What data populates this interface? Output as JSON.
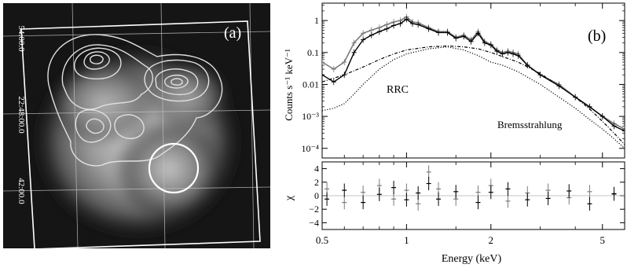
{
  "panel_a": {
    "label": "(a)",
    "dec_ticks": [
      "54:00.0",
      "22:48:00.0",
      "42:00.0"
    ],
    "ra_ticks": [
      "36.0",
      "6:17:04.0",
      "16:32.0"
    ]
  },
  "panel_b": {
    "label": "(b)",
    "annotations": {
      "rrc": "RRC",
      "brems": "Bremsstrahlung"
    }
  },
  "chart_data": [
    {
      "type": "line",
      "panel": "b-upper",
      "title": "",
      "xlabel": "Energy (keV)",
      "ylabel": "Counts s⁻¹ keV⁻¹",
      "xscale": "log",
      "yscale": "log",
      "xlim": [
        0.5,
        6.0
      ],
      "ylim": [
        5e-05,
        3.5
      ],
      "x_ticks": [
        "0.5",
        "1",
        "2",
        "5"
      ],
      "y_ticks": [
        "1",
        "0.1",
        "0.01",
        "10⁻³",
        "10⁻⁴"
      ],
      "series": [
        {
          "style": "data-grey",
          "x": [
            0.5,
            0.55,
            0.6,
            0.65,
            0.7,
            0.75,
            0.8,
            0.85,
            0.9,
            0.95,
            1.0,
            1.05,
            1.1,
            1.2,
            1.3,
            1.4,
            1.5,
            1.6,
            1.7,
            1.8,
            1.9,
            2.0,
            2.1,
            2.2,
            2.3,
            2.4,
            2.5,
            2.7,
            3.0,
            3.5,
            4.0,
            4.5,
            5.0,
            5.5,
            6.0
          ],
          "y": [
            0.05,
            0.03,
            0.05,
            0.2,
            0.4,
            0.5,
            0.6,
            0.75,
            0.9,
            1.0,
            1.3,
            0.9,
            0.85,
            0.6,
            0.45,
            0.45,
            0.3,
            0.35,
            0.25,
            0.45,
            0.22,
            0.18,
            0.12,
            0.1,
            0.11,
            0.1,
            0.09,
            0.04,
            0.02,
            0.01,
            0.004,
            0.002,
            0.001,
            0.0006,
            0.0004
          ]
        },
        {
          "style": "data-black",
          "x": [
            0.5,
            0.55,
            0.6,
            0.65,
            0.7,
            0.75,
            0.8,
            0.85,
            0.9,
            0.95,
            1.0,
            1.05,
            1.1,
            1.2,
            1.3,
            1.4,
            1.5,
            1.6,
            1.7,
            1.8,
            1.9,
            2.0,
            2.1,
            2.2,
            2.3,
            2.4,
            2.5,
            2.7,
            3.0,
            3.5,
            4.0,
            4.5,
            5.0,
            5.5,
            6.0
          ],
          "y": [
            0.02,
            0.012,
            0.02,
            0.1,
            0.25,
            0.35,
            0.45,
            0.55,
            0.7,
            0.8,
            1.1,
            0.8,
            0.75,
            0.55,
            0.42,
            0.42,
            0.28,
            0.32,
            0.22,
            0.4,
            0.2,
            0.17,
            0.11,
            0.09,
            0.1,
            0.09,
            0.08,
            0.04,
            0.02,
            0.009,
            0.004,
            0.002,
            0.001,
            0.0005,
            0.00035
          ]
        },
        {
          "name": "Bremsstrahlung",
          "style": "dash-dot",
          "x": [
            0.5,
            0.6,
            0.7,
            0.8,
            0.9,
            1.0,
            1.2,
            1.4,
            1.6,
            1.8,
            2.0,
            2.5,
            3.0,
            3.5,
            4.0,
            4.5,
            5.0,
            5.5,
            6.0
          ],
          "y": [
            0.012,
            0.02,
            0.035,
            0.06,
            0.09,
            0.12,
            0.15,
            0.16,
            0.15,
            0.13,
            0.1,
            0.05,
            0.022,
            0.009,
            0.004,
            0.0017,
            0.0007,
            0.0003,
            0.00013
          ]
        },
        {
          "name": "RRC",
          "style": "dotted",
          "x": [
            0.5,
            0.55,
            0.6,
            0.65,
            0.7,
            0.8,
            0.9,
            1.0,
            1.2,
            1.4,
            1.6,
            1.8,
            2.0,
            2.2,
            2.5,
            3.0,
            3.5,
            4.0,
            4.5,
            5.0,
            5.5,
            6.0
          ],
          "y": [
            0.0015,
            0.0018,
            0.0025,
            0.005,
            0.01,
            0.03,
            0.06,
            0.09,
            0.13,
            0.15,
            0.12,
            0.08,
            0.05,
            0.04,
            0.025,
            0.01,
            0.004,
            0.0018,
            0.0008,
            0.0004,
            0.0002,
            0.0001
          ]
        }
      ]
    },
    {
      "type": "scatter",
      "panel": "b-lower",
      "xlabel": "Energy (keV)",
      "ylabel": "χ",
      "xscale": "log",
      "xlim": [
        0.5,
        6.0
      ],
      "ylim": [
        -5,
        5
      ],
      "y_ticks": [
        "4",
        "2",
        "0",
        "−2",
        "−4"
      ],
      "series": [
        {
          "style": "residual-grey",
          "x": [
            0.52,
            0.6,
            0.7,
            0.8,
            0.9,
            1.0,
            1.1,
            1.2,
            1.3,
            1.5,
            1.8,
            2.0,
            2.3,
            2.7,
            3.2,
            3.8,
            4.5,
            5.5
          ],
          "y": [
            1.0,
            -1.0,
            0.5,
            1.5,
            -0.5,
            0.8,
            -1.2,
            3.5,
            1.0,
            -0.5,
            0.5,
            1.5,
            -0.8,
            0.4,
            0.8,
            -0.3,
            0.6,
            0.2
          ]
        },
        {
          "style": "residual-black",
          "x": [
            0.52,
            0.6,
            0.7,
            0.8,
            0.9,
            1.0,
            1.1,
            1.2,
            1.3,
            1.5,
            1.8,
            2.0,
            2.3,
            2.7,
            3.2,
            3.8,
            4.5,
            5.5
          ],
          "y": [
            -0.5,
            0.8,
            -1.0,
            0.2,
            1.2,
            -0.6,
            0.4,
            1.8,
            -0.5,
            0.6,
            -1.0,
            0.5,
            1.0,
            -0.6,
            -0.4,
            0.7,
            -1.2,
            0.3
          ]
        }
      ]
    }
  ]
}
